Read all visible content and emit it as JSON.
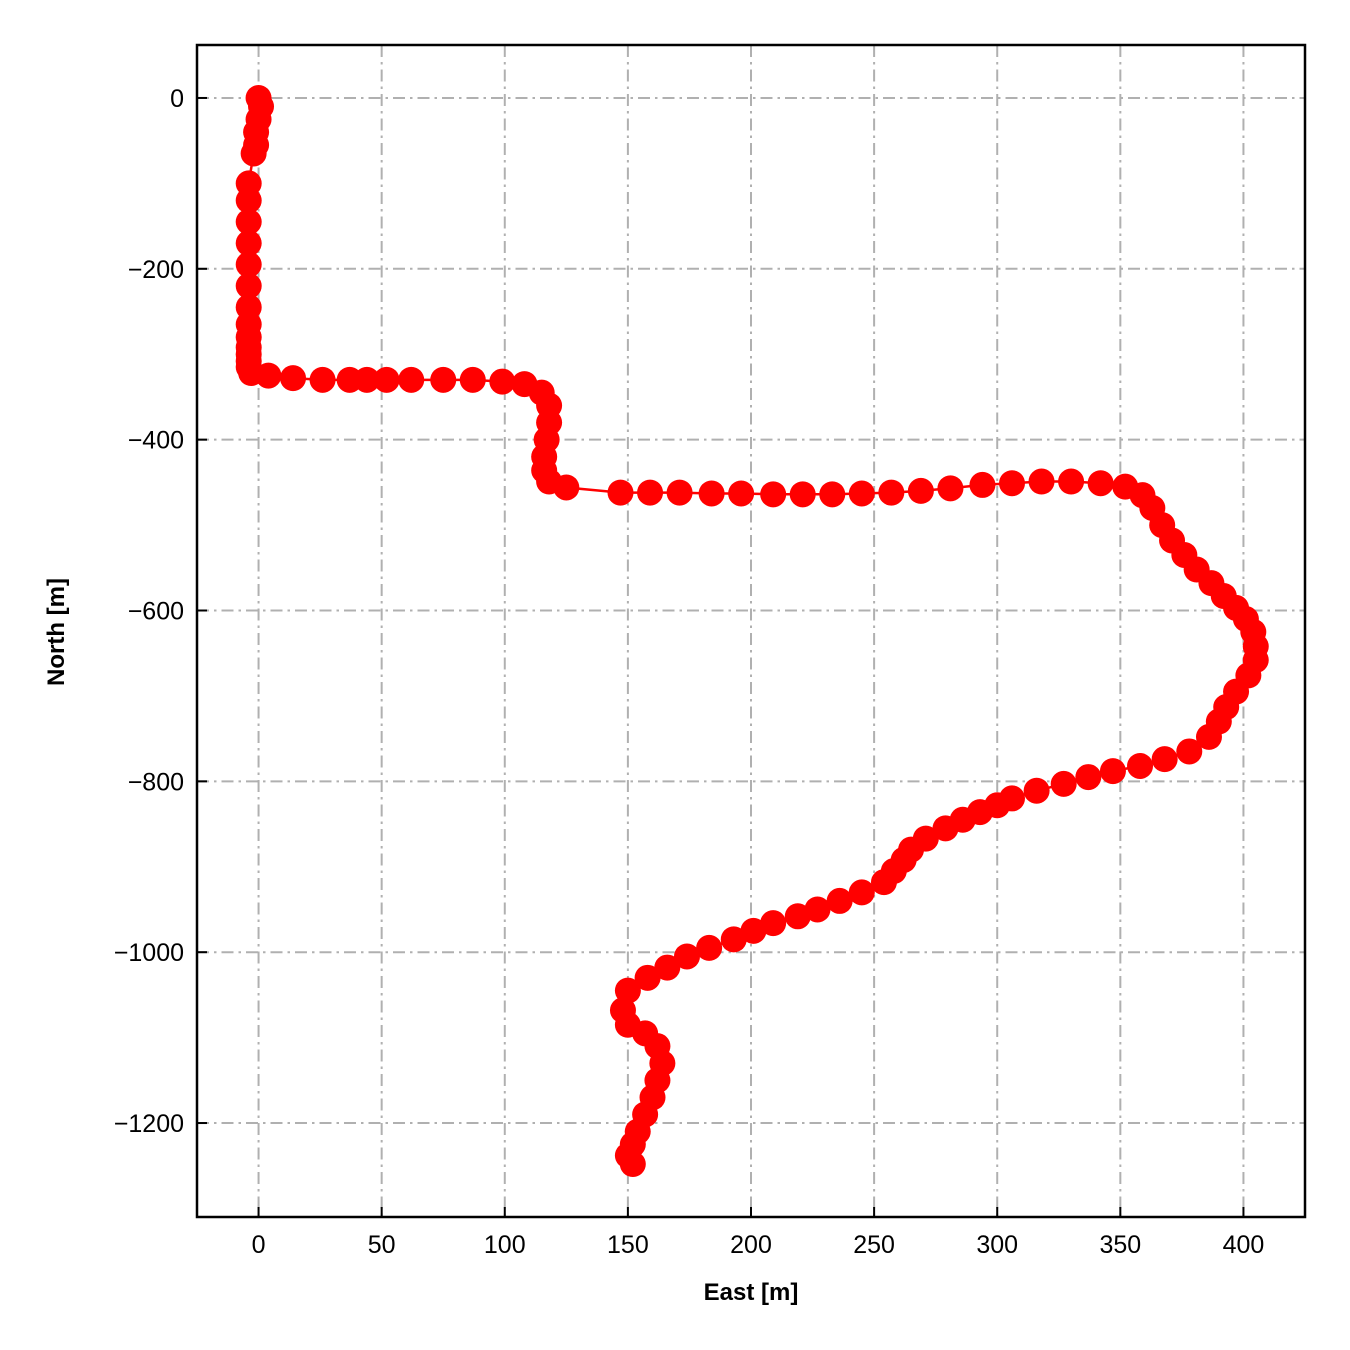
{
  "chart_data": {
    "type": "line",
    "title": "",
    "xlabel": "East [m]",
    "ylabel": "North [m]",
    "xlim": [
      -25,
      425
    ],
    "ylim": [
      -1310,
      62
    ],
    "xticks": [
      0,
      50,
      100,
      150,
      200,
      250,
      300,
      350,
      400
    ],
    "yticks": [
      0,
      -200,
      -400,
      -600,
      -800,
      -1000,
      -1200
    ],
    "xtick_labels": [
      "0",
      "50",
      "100",
      "150",
      "200",
      "250",
      "300",
      "350",
      "400"
    ],
    "ytick_labels": [
      "0",
      "−200",
      "−400",
      "−600",
      "−800",
      "−1000",
      "−1200"
    ],
    "grid": true,
    "grid_style": "dash-dot",
    "marker": "circle",
    "color": "#ff0000",
    "grid_color": "#b0b0b0",
    "series": [
      {
        "x": [
          0,
          1,
          0,
          -1,
          -1,
          -2,
          -4,
          -4,
          -4,
          -4,
          -4,
          -4,
          -4,
          -4,
          -4,
          -4,
          -4,
          -4,
          -4,
          -3,
          4,
          14,
          26,
          37,
          44,
          52,
          62,
          75,
          87,
          99,
          108,
          115,
          118,
          118,
          117,
          116,
          116,
          118,
          125,
          147,
          159,
          171,
          184,
          196,
          209,
          221,
          233,
          245,
          257,
          269,
          281,
          294,
          306,
          318,
          330,
          342,
          352,
          359,
          363,
          367,
          371,
          376,
          381,
          387,
          392,
          397,
          401,
          404,
          405,
          405,
          402,
          397,
          393,
          390,
          386,
          378,
          368,
          358,
          347,
          337,
          327,
          316,
          306,
          300,
          293,
          286,
          279,
          271,
          265,
          262,
          258,
          254,
          245,
          236,
          227,
          219,
          209,
          201,
          193,
          183,
          174,
          166,
          158,
          150,
          148,
          150,
          157,
          162,
          164,
          162,
          160,
          157,
          154,
          152,
          150,
          152
        ],
        "y": [
          0,
          -10,
          -25,
          -40,
          -55,
          -65,
          -100,
          -120,
          -145,
          -170,
          -195,
          -220,
          -245,
          -265,
          -280,
          -292,
          -300,
          -308,
          -315,
          -322,
          -325,
          -328,
          -330,
          -330,
          -330,
          -330,
          -330,
          -330,
          -330,
          -332,
          -335,
          -345,
          -360,
          -380,
          -400,
          -420,
          -436,
          -449,
          -456,
          -462,
          -462,
          -462,
          -463,
          -463,
          -464,
          -464,
          -464,
          -463,
          -462,
          -460,
          -457,
          -453,
          -451,
          -449,
          -449,
          -451,
          -455,
          -465,
          -480,
          -500,
          -518,
          -535,
          -552,
          -568,
          -583,
          -597,
          -610,
          -625,
          -642,
          -658,
          -676,
          -695,
          -713,
          -730,
          -748,
          -765,
          -774,
          -782,
          -788,
          -795,
          -803,
          -811,
          -820,
          -828,
          -836,
          -845,
          -855,
          -867,
          -880,
          -892,
          -905,
          -918,
          -930,
          -940,
          -950,
          -958,
          -966,
          -975,
          -985,
          -995,
          -1005,
          -1018,
          -1030,
          -1045,
          -1068,
          -1085,
          -1095,
          -1110,
          -1130,
          -1150,
          -1170,
          -1190,
          -1210,
          -1225,
          -1238,
          -1248
        ]
      }
    ]
  }
}
